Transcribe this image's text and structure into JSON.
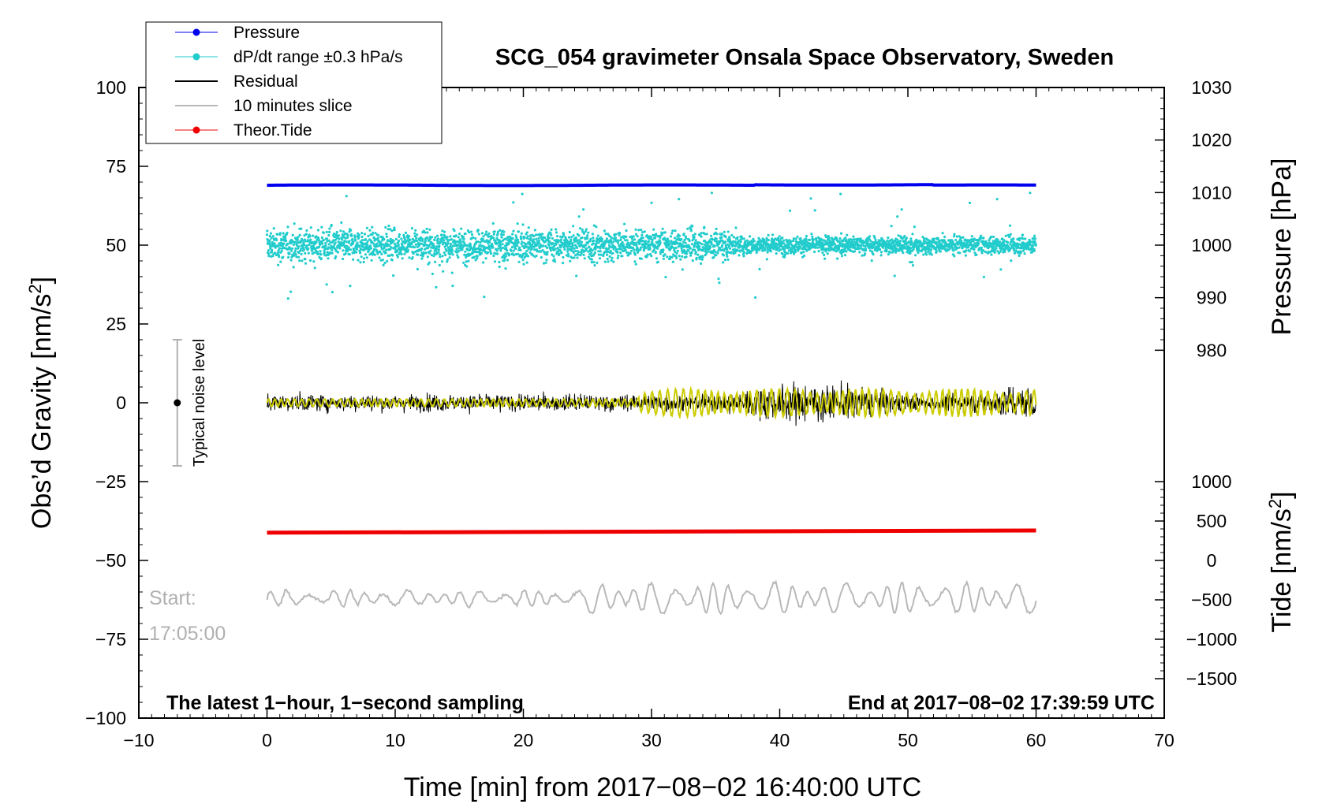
{
  "chart_data": {
    "type": "line",
    "title": "SCG_054 gravimeter Onsala Space Observatory, Sweden",
    "xlabel": "Time [min] from 2017−08−02 16:40:00 UTC",
    "ylabel_left": "Obs’d Gravity [nm/s²]",
    "ylabel_right_top": "Pressure [hPa]",
    "ylabel_right_bottom": "Tide [nm/s²]",
    "xlim": [
      -10,
      70
    ],
    "ylim_left": [
      -100,
      100
    ],
    "xticks": [
      -10,
      0,
      10,
      20,
      30,
      40,
      50,
      60,
      70
    ],
    "xtick_labels": [
      "−10",
      "0",
      "10",
      "20",
      "30",
      "40",
      "50",
      "60",
      "70"
    ],
    "yticks_left": [
      100,
      75,
      50,
      25,
      0,
      -25,
      -50,
      -75,
      -100
    ],
    "ytick_labels_left": [
      "100",
      "75",
      "50",
      "25",
      "0",
      "−25",
      "−50",
      "−75",
      "−100"
    ],
    "pressure_axis": {
      "ticks": [
        1030,
        1020,
        1010,
        1000,
        990,
        980
      ],
      "tick_labels": [
        "1030",
        "1020",
        "1010",
        "1000",
        "990",
        "980"
      ],
      "range_shown": [
        980,
        1030
      ]
    },
    "tide_axis": {
      "ticks": [
        1000,
        500,
        0,
        -500,
        -1000,
        -1500
      ],
      "tick_labels": [
        "1000",
        "500",
        "0",
        "−500",
        "−1000",
        "−1500"
      ],
      "range_shown": [
        -1500,
        1000
      ]
    },
    "legend": {
      "placement": "top-left",
      "entries": [
        {
          "label": "Pressure",
          "color": "#0000ee",
          "marker": "dot"
        },
        {
          "label": "dP/dt range ±0.3 hPa/s",
          "color": "#22cccc",
          "marker": "dot"
        },
        {
          "label": "Residual",
          "color": "#000000",
          "marker": "line"
        },
        {
          "label": "10 minutes slice",
          "color": "#b8b8b8",
          "marker": "line"
        },
        {
          "label": "Theor.Tide",
          "color": "#ee0000",
          "marker": "dot"
        }
      ]
    },
    "series": [
      {
        "name": "Pressure",
        "axis": "pressure",
        "color": "#0000ee",
        "x_range": [
          0,
          60
        ],
        "approx_value_hPa": 1011,
        "plotted_level_left_units": 69
      },
      {
        "name": "dP/dt range ±0.3 hPa/s",
        "color": "#22cccc",
        "x_range": [
          0,
          60
        ],
        "center_left_units": 50,
        "spread_left_units": 17
      },
      {
        "name": "Residual",
        "color": "#000000",
        "x_range": [
          0,
          60
        ],
        "center_left_units": 0,
        "amplitude_first_half": 4,
        "amplitude_second_half": 9
      },
      {
        "name": "Residual (smoothed)",
        "color": "#cccc00",
        "x_range": [
          0,
          60
        ],
        "center_left_units": 0
      },
      {
        "name": "Theor.Tide",
        "axis": "tide",
        "color": "#ee0000",
        "x_range": [
          0,
          60
        ],
        "plotted_level_left_units": [
          -41.2,
          -40.5
        ]
      },
      {
        "name": "10 minutes slice",
        "color": "#b8b8b8",
        "x_range": [
          0,
          60
        ],
        "center_left_units": -62,
        "amplitude_left_units": 5
      }
    ],
    "annotations": {
      "noise_bar_label": "Typical noise level",
      "noise_bar_x": -7,
      "noise_bar_range": [
        -20,
        20
      ],
      "slice_start_label": "Start:",
      "slice_start_time": "17:05:00",
      "bottom_left_note": "The latest 1−hour, 1−second sampling",
      "bottom_right_note": "End at 2017−08−02 17:39:59 UTC"
    },
    "colors": {
      "pressure": "#0000ee",
      "dpdt": "#22cccc",
      "residual": "#000000",
      "smoothed": "#cccc00",
      "slice": "#b8b8b8",
      "tide": "#ee0000"
    }
  }
}
